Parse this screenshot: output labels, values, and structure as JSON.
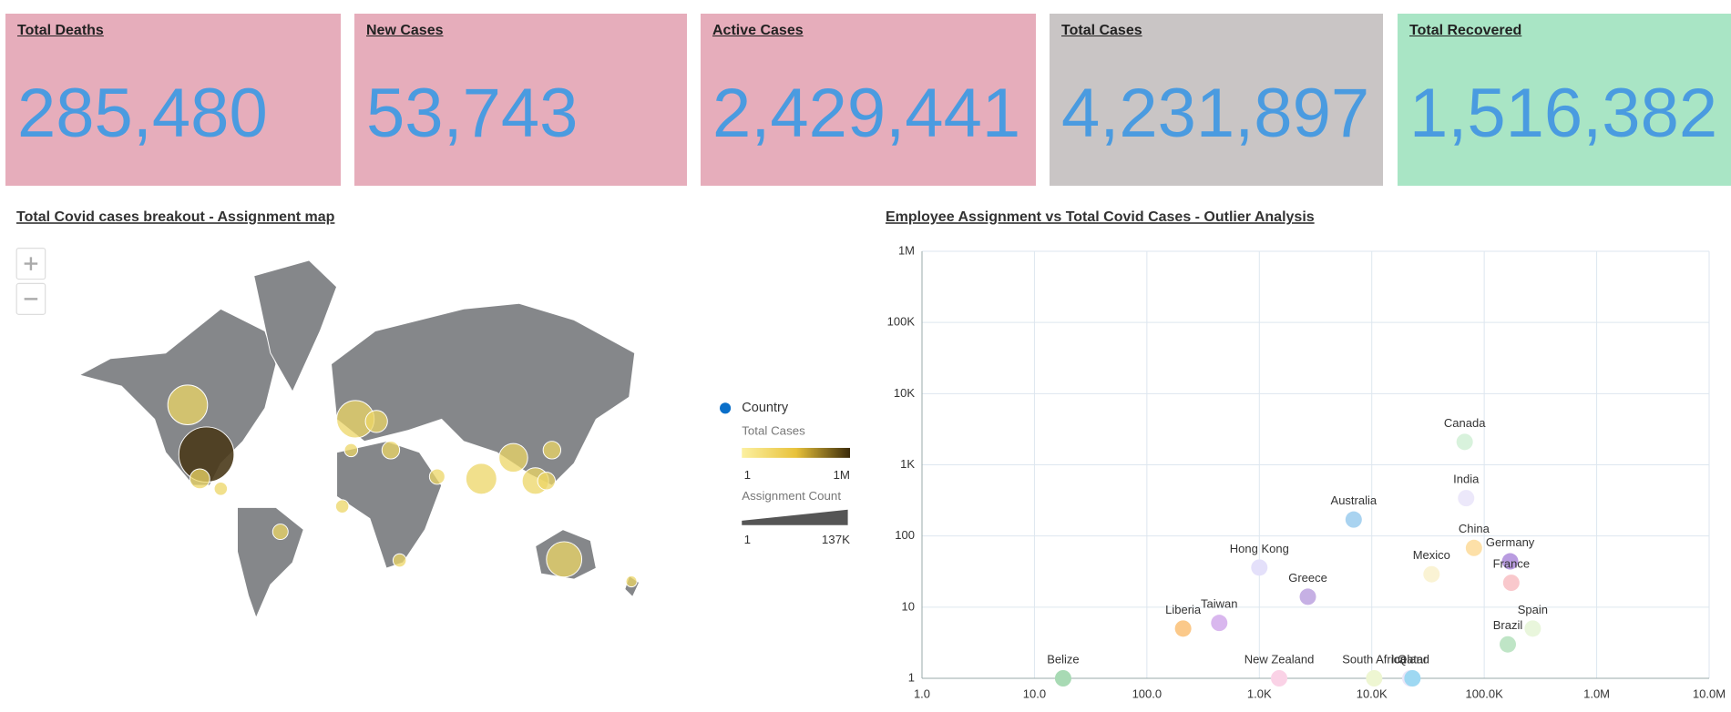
{
  "kpis": [
    {
      "title": "Total Deaths",
      "value": "285,480",
      "color": "#e6adbb"
    },
    {
      "title": "New Cases",
      "value": "53,743",
      "color": "#e6adbb"
    },
    {
      "title": "Active Cases",
      "value": "2,429,441",
      "color": "#e6adbb"
    },
    {
      "title": "Total Cases",
      "value": "4,231,897",
      "color": "#c9c5c5"
    },
    {
      "title": "Total Recovered",
      "value": "1,516,382",
      "color": "#a9e5c5"
    }
  ],
  "map": {
    "title": "Total Covid cases breakout - Assignment map",
    "legend": {
      "series": "Country",
      "color_title": "Total Cases",
      "color_min": "1",
      "color_max": "1M",
      "size_title": "Assignment Count",
      "size_min": "1",
      "size_max": "137K"
    }
  },
  "chart_data": {
    "type": "scatter",
    "title": "Employee Assignment vs Total Covid Cases - Outlier Analysis",
    "xscale": "log",
    "yscale": "log",
    "grid": true,
    "labels": [
      "Canada",
      "India",
      "Australia",
      "China",
      "Germany",
      "Mexico",
      "France",
      "Hong Kong",
      "Greece",
      "Liberia",
      "Taiwan",
      "Spain",
      "Brazil",
      "Belize",
      "New Zealand",
      "South Africa",
      "Iceland",
      "Qatar"
    ],
    "x": [
      67000,
      69000,
      6900,
      81000,
      170000,
      34000,
      174000,
      1000,
      2700,
      210,
      440,
      270000,
      162000,
      18,
      1500,
      10500,
      22000,
      23000
    ],
    "y": [
      2100,
      340,
      170,
      68,
      44,
      29,
      22,
      36,
      14,
      5,
      6,
      5,
      3,
      1,
      1,
      1,
      1,
      1
    ],
    "colors": [
      "#d8f2dc",
      "#ece8fa",
      "#a9d3f0",
      "#fde0a8",
      "#b99ce0",
      "#faf3d4",
      "#f9c8cc",
      "#e4e0fa",
      "#c6b0e4",
      "#fbc98a",
      "#d9b7ee",
      "#e9f6dc",
      "#bfe5c6",
      "#a8dab4",
      "#fad2e6",
      "#eef6d2",
      "#eae6f8",
      "#9ed8f2"
    ],
    "xlim": [
      1,
      10000000
    ],
    "ylim": [
      1,
      1000000
    ],
    "xticks": [
      {
        "value": 1,
        "label": "1.0"
      },
      {
        "value": 10,
        "label": "10.0"
      },
      {
        "value": 100,
        "label": "100.0"
      },
      {
        "value": 1000,
        "label": "1.0K"
      },
      {
        "value": 10000,
        "label": "10.0K"
      },
      {
        "value": 100000,
        "label": "100.0K"
      },
      {
        "value": 1000000,
        "label": "1.0M"
      },
      {
        "value": 10000000,
        "label": "10.0M"
      }
    ],
    "yticks": [
      1,
      10,
      100,
      {
        "value": 1000,
        "label": "1K"
      },
      {
        "value": 10000,
        "label": "10K"
      },
      {
        "value": 100000,
        "label": "100K"
      },
      {
        "value": 1000000,
        "label": "1M"
      }
    ]
  }
}
